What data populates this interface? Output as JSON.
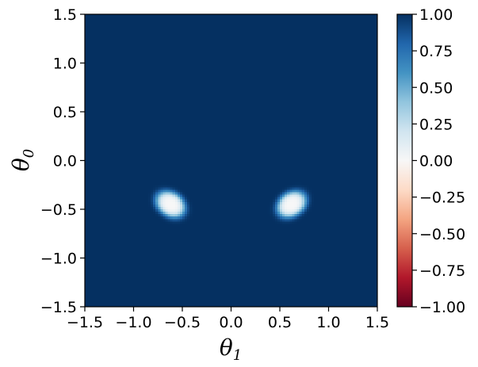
{
  "chart_data": {
    "type": "heatmap",
    "title": "",
    "xlabel": {
      "symbol": "θ",
      "subscript": "1"
    },
    "ylabel": {
      "symbol": "θ",
      "subscript": "0"
    },
    "xlim": [
      -1.5,
      1.5
    ],
    "ylim": [
      -1.5,
      1.5
    ],
    "x_ticks": [
      -1.5,
      -1.0,
      -0.5,
      0.0,
      0.5,
      1.0,
      1.5
    ],
    "x_tick_labels": [
      "−1.5",
      "−1.0",
      "−0.5",
      "0.0",
      "0.5",
      "1.0",
      "1.5"
    ],
    "y_ticks": [
      -1.5,
      -1.0,
      -0.5,
      0.0,
      0.5,
      1.0,
      1.5
    ],
    "y_tick_labels": [
      "−1.5",
      "−1.0",
      "−0.5",
      "0.0",
      "0.5",
      "1.0",
      "1.5"
    ],
    "colormap": "RdBu",
    "colormap_stops": [
      "#67001f",
      "#b2182b",
      "#d6604d",
      "#f4a582",
      "#fddbc7",
      "#f7f7f7",
      "#d1e5f0",
      "#92c5de",
      "#4393c3",
      "#2166ac",
      "#053061"
    ],
    "clim": [
      -1.0,
      1.0
    ],
    "background_value": 1.0,
    "features": [
      {
        "cx": -0.62,
        "cy": -0.45,
        "sx": 0.12,
        "sy": 0.09,
        "angle_deg": -35,
        "min_value": 0.0
      },
      {
        "cx": 0.62,
        "cy": -0.45,
        "sx": 0.12,
        "sy": 0.09,
        "angle_deg": 35,
        "min_value": 0.0
      }
    ],
    "grid": false,
    "colorbar": {
      "ticks": [
        1.0,
        0.75,
        0.5,
        0.25,
        0.0,
        -0.25,
        -0.5,
        -0.75,
        -1.0
      ],
      "tick_labels": [
        "1.00",
        "0.75",
        "0.50",
        "0.25",
        "0.00",
        "−0.25",
        "−0.50",
        "−0.75",
        "−1.00"
      ]
    }
  }
}
